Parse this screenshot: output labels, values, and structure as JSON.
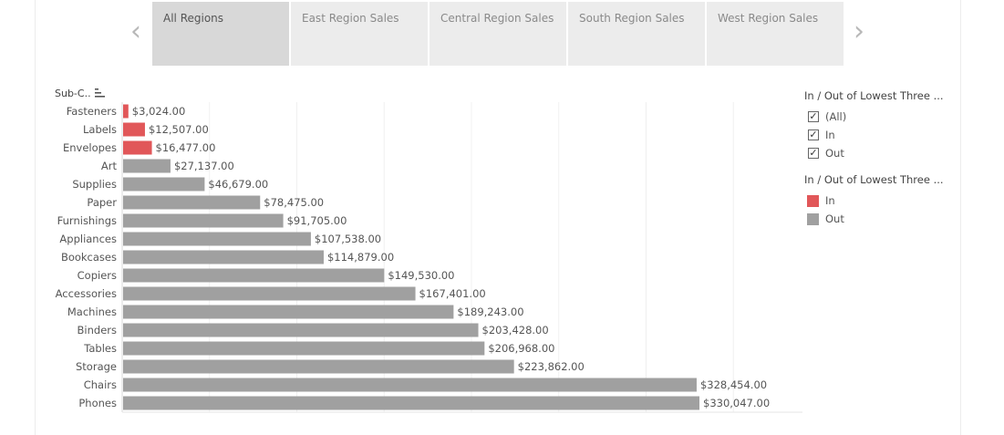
{
  "tabs": [
    {
      "label": "All Regions",
      "active": true
    },
    {
      "label": "East Region Sales",
      "active": false
    },
    {
      "label": "Central Region Sales",
      "active": false
    },
    {
      "label": "South Region Sales",
      "active": false
    },
    {
      "label": "West Region Sales",
      "active": false
    }
  ],
  "nav": {
    "prev_icon": "chevron-left-icon",
    "next_icon": "chevron-right-icon"
  },
  "filter_legend": {
    "title": "In / Out of Lowest Three ...",
    "items": [
      {
        "label": "(All)",
        "checked": true
      },
      {
        "label": "In",
        "checked": true
      },
      {
        "label": "Out",
        "checked": true
      }
    ]
  },
  "color_legend": {
    "title": "In / Out of Lowest Three ...",
    "items": [
      {
        "label": "In",
        "color": "#e15759"
      },
      {
        "label": "Out",
        "color": "#a0a0a0"
      }
    ]
  },
  "chart_data": {
    "type": "bar",
    "orientation": "horizontal",
    "sorted": "ascending",
    "row_header": "Sub-C..",
    "categories": [
      "Fasteners",
      "Labels",
      "Envelopes",
      "Art",
      "Supplies",
      "Paper",
      "Furnishings",
      "Appliances",
      "Bookcases",
      "Copiers",
      "Accessories",
      "Machines",
      "Binders",
      "Tables",
      "Storage",
      "Chairs",
      "Phones"
    ],
    "values": [
      3024,
      12507,
      16477,
      27137,
      46679,
      78475,
      91705,
      107538,
      114879,
      149530,
      167401,
      189243,
      203428,
      206968,
      223862,
      328454,
      330047
    ],
    "value_labels": [
      "$3,024.00",
      "$12,507.00",
      "$16,477.00",
      "$27,137.00",
      "$46,679.00",
      "$78,475.00",
      "$91,705.00",
      "$107,538.00",
      "$114,879.00",
      "$149,530.00",
      "$167,401.00",
      "$189,243.00",
      "$203,428.00",
      "$206,968.00",
      "$223,862.00",
      "$328,454.00",
      "$330,047.00"
    ],
    "group": [
      "In",
      "In",
      "In",
      "Out",
      "Out",
      "Out",
      "Out",
      "Out",
      "Out",
      "Out",
      "Out",
      "Out",
      "Out",
      "Out",
      "Out",
      "Out",
      "Out"
    ],
    "colors": {
      "In": "#e15759",
      "Out": "#a0a0a0"
    },
    "xlim": [
      0,
      400000
    ],
    "gridlines": [
      50000,
      100000,
      150000,
      200000,
      250000,
      300000,
      350000
    ],
    "grid": true
  }
}
